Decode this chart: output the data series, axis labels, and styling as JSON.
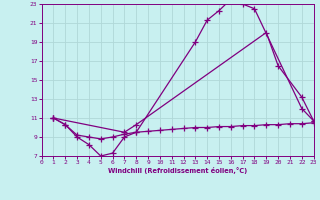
{
  "xlabel": "Windchill (Refroidissement éolien,°C)",
  "bg_color": "#c8f0f0",
  "grid_color": "#b0d8d8",
  "line_color": "#800080",
  "xmin": 0,
  "xmax": 23,
  "ymin": 7,
  "ymax": 23,
  "yticks": [
    7,
    9,
    11,
    13,
    15,
    17,
    19,
    21,
    23
  ],
  "xticks": [
    0,
    1,
    2,
    3,
    4,
    5,
    6,
    7,
    8,
    9,
    10,
    11,
    12,
    13,
    14,
    15,
    16,
    17,
    18,
    19,
    20,
    21,
    22,
    23
  ],
  "line1_x": [
    1,
    2,
    3,
    4,
    5,
    6,
    7,
    8,
    13,
    14,
    15,
    16,
    17,
    18,
    22,
    23
  ],
  "line1_y": [
    11.0,
    10.3,
    9.0,
    8.2,
    7.0,
    7.3,
    9.0,
    9.5,
    19.0,
    21.3,
    22.3,
    23.5,
    23.0,
    22.5,
    12.0,
    10.7
  ],
  "line2_x": [
    1,
    7,
    8,
    19,
    20,
    22,
    23
  ],
  "line2_y": [
    11.0,
    9.5,
    10.3,
    20.0,
    16.5,
    13.2,
    10.7
  ],
  "line3_x": [
    1,
    2,
    3,
    4,
    5,
    6,
    7,
    8,
    9,
    10,
    11,
    12,
    13,
    14,
    15,
    16,
    17,
    18,
    19,
    20,
    21,
    22,
    23
  ],
  "line3_y": [
    11.0,
    10.3,
    9.2,
    9.0,
    8.8,
    9.0,
    9.3,
    9.5,
    9.6,
    9.7,
    9.8,
    9.9,
    10.0,
    10.0,
    10.1,
    10.1,
    10.2,
    10.2,
    10.3,
    10.3,
    10.4,
    10.4,
    10.5
  ]
}
